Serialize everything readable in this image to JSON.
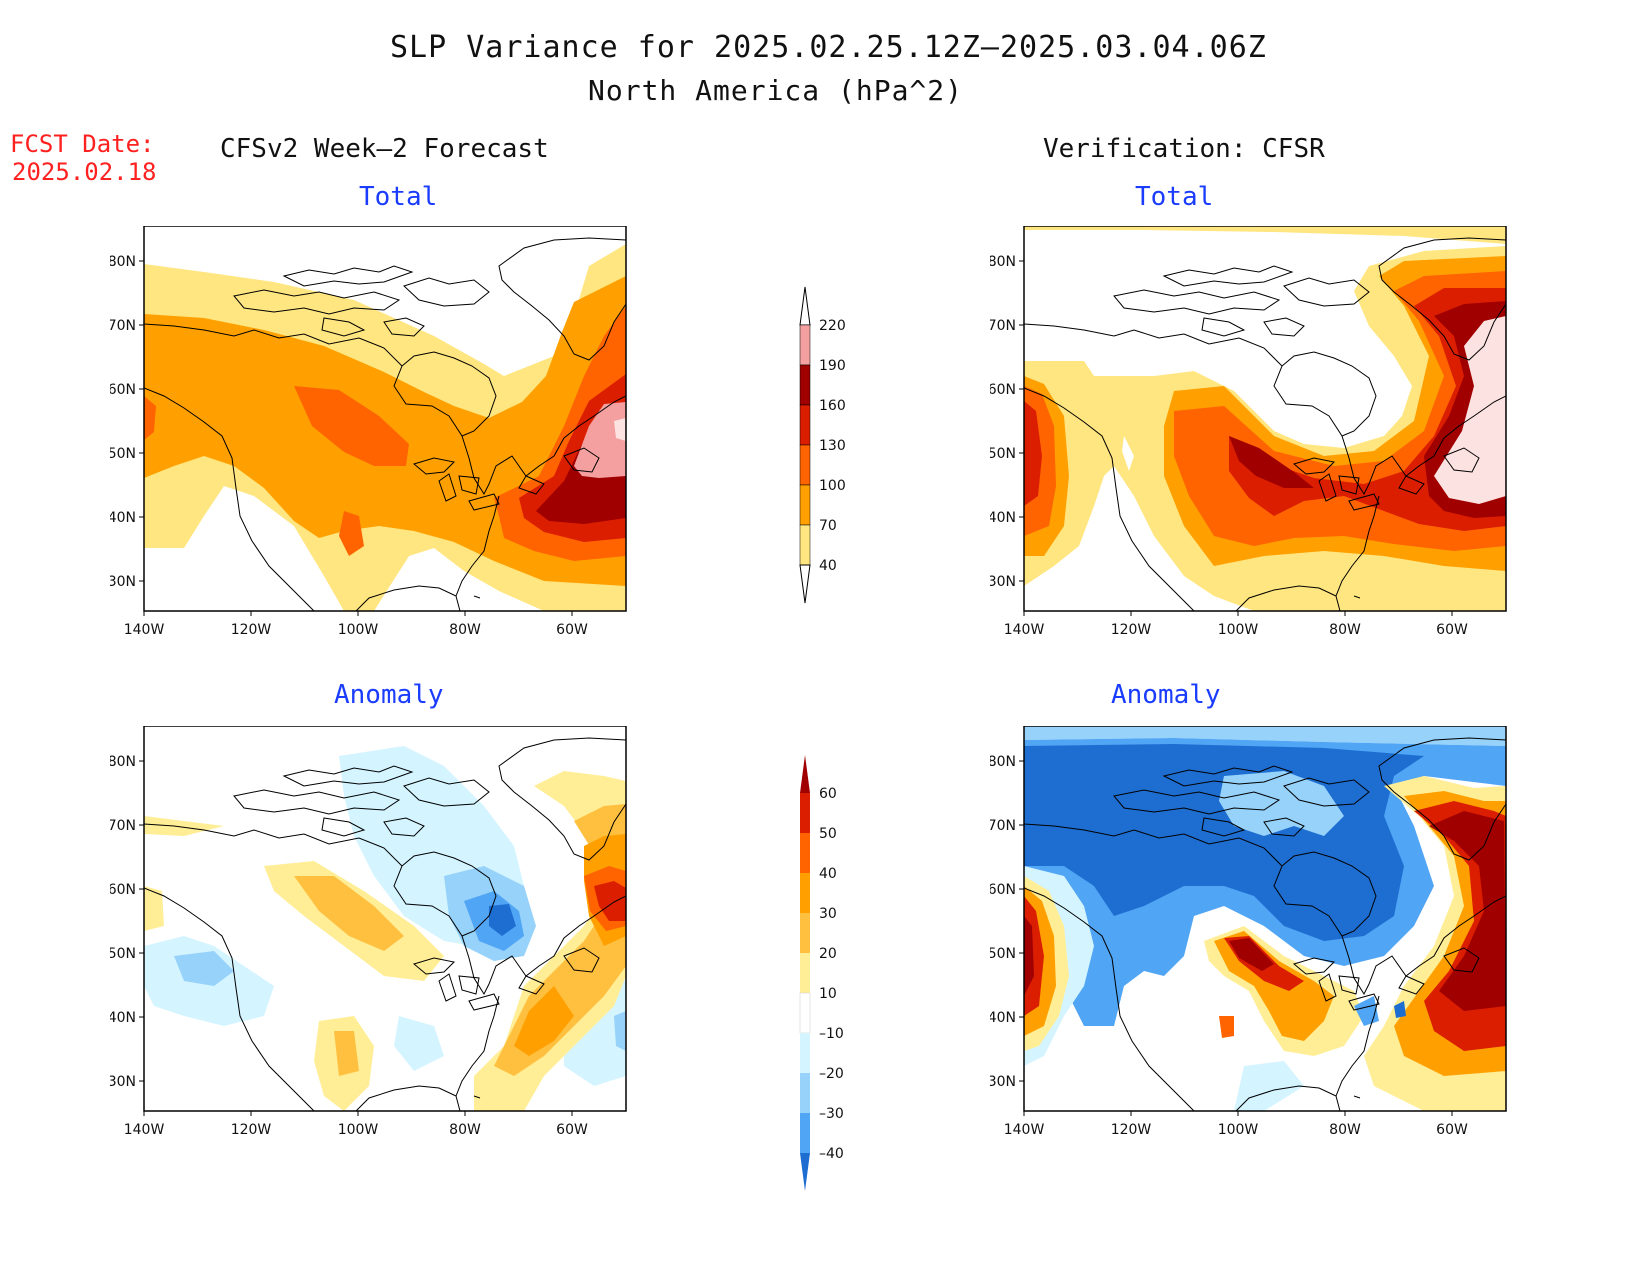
{
  "header": {
    "title": "SLP Variance for 2025.02.25.12Z–2025.03.04.06Z",
    "subtitle": "North America (hPa^2)",
    "fcst_label": "FCST Date:",
    "fcst_date": "2025.02.18",
    "left_heading": "CFSv2 Week–2 Forecast",
    "right_heading": "Verification: CFSR"
  },
  "panels": {
    "fc_total": {
      "title": "Total"
    },
    "ver_total": {
      "title": "Total"
    },
    "fc_anom": {
      "title": "Anomaly"
    },
    "ver_anom": {
      "title": "Anomaly"
    }
  },
  "axes": {
    "lat_labels": [
      "80N",
      "70N",
      "60N",
      "50N",
      "40N",
      "30N"
    ],
    "lon_labels": [
      "140W",
      "120W",
      "100W",
      "80W",
      "60W"
    ]
  },
  "colorbars": {
    "total": {
      "levels": [
        "220",
        "190",
        "160",
        "130",
        "100",
        "70",
        "40"
      ],
      "colors": [
        "#fde2e2",
        "#f4a0a0",
        "#a00000",
        "#dc1e00",
        "#ff6400",
        "#ffa000",
        "#ffe680"
      ]
    },
    "anomaly": {
      "levels": [
        "60",
        "50",
        "40",
        "30",
        "20",
        "10",
        "–10",
        "–20",
        "–30",
        "–40"
      ],
      "colors": [
        "#a00000",
        "#dc1e00",
        "#ff6400",
        "#ffa000",
        "#ffc040",
        "#ffee96",
        "#ffffff",
        "#d4f4ff",
        "#96d2fa",
        "#50a5f5",
        "#1e6ed2"
      ]
    }
  }
}
